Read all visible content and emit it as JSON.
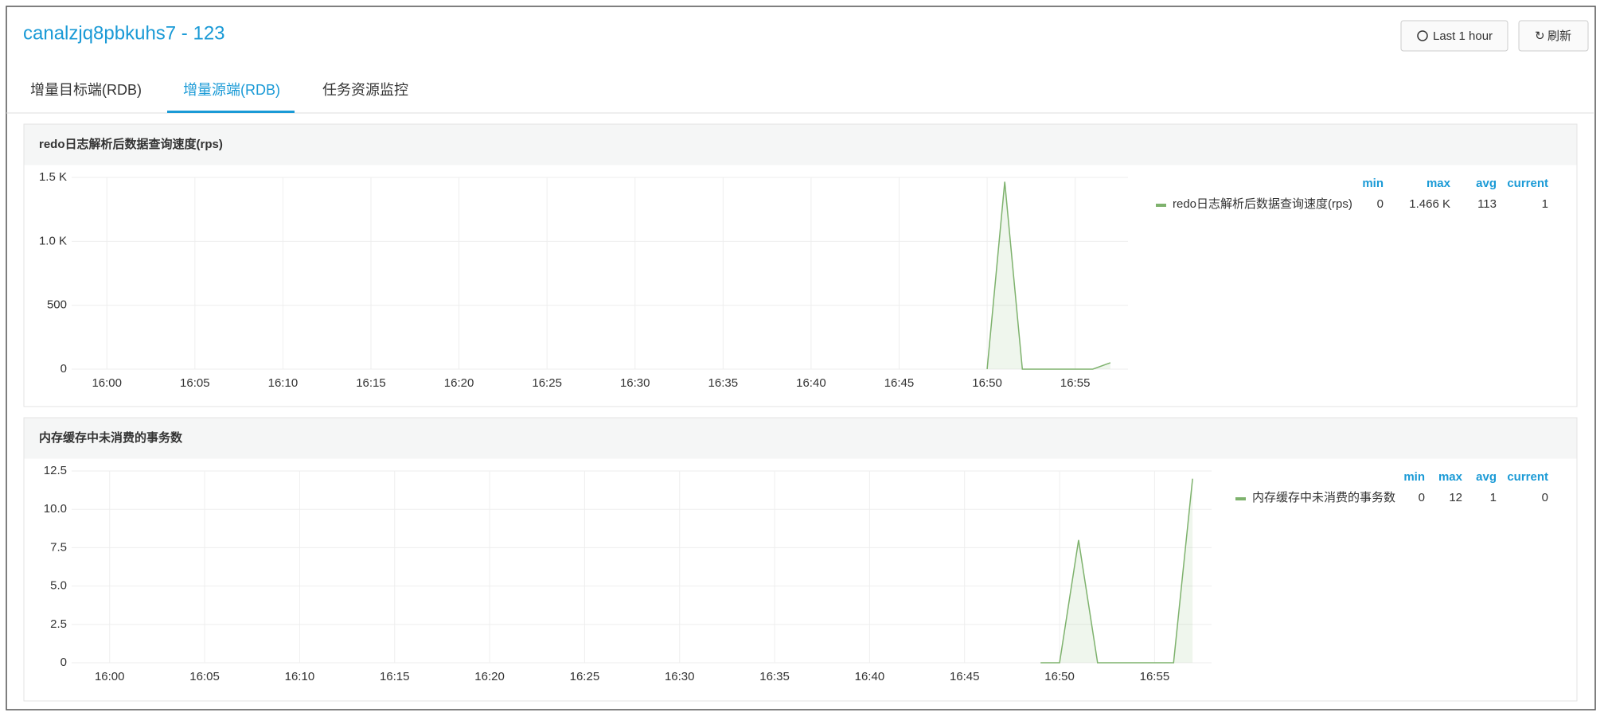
{
  "header": {
    "title": "canalzjq8pbkuhs7 - 123",
    "buttons": [
      "Last 1 hour",
      "刷新"
    ]
  },
  "tabs": {
    "items": [
      "增量目标端(RDB)",
      "增量源端(RDB)",
      "任务资源监控"
    ],
    "active": 1
  },
  "chart_data": [
    {
      "type": "line",
      "title": "redo日志解析后数据查询速度(rps)",
      "x": [
        "16:50",
        "16:51",
        "16:52",
        "16:53",
        "16:54",
        "16:55",
        "16:56",
        "16:57"
      ],
      "series": [
        {
          "name": "redo日志解析后数据查询速度(rps)",
          "color": "#7eb26d",
          "values": [
            0,
            1466,
            0,
            0,
            0,
            0,
            0,
            50
          ],
          "stats": [
            "0",
            "1.466 K",
            "113",
            "1"
          ]
        }
      ],
      "stat_columns": [
        "min",
        "max",
        "avg",
        "current"
      ],
      "xlim": [
        "15:58",
        "16:58"
      ],
      "xticks": [
        "16:00",
        "16:05",
        "16:10",
        "16:15",
        "16:20",
        "16:25",
        "16:30",
        "16:35",
        "16:40",
        "16:45",
        "16:50",
        "16:55"
      ],
      "ylim": [
        0,
        1500
      ],
      "yticks": [
        0,
        500,
        {
          "value": 1000,
          "label": "1.0 K"
        },
        {
          "value": 1500,
          "label": "1.5 K"
        }
      ],
      "grid": true
    },
    {
      "type": "line",
      "title": "内存缓存中未消费的事务数",
      "x": [
        "16:49",
        "16:50",
        "16:51",
        "16:52",
        "16:53",
        "16:54",
        "16:55",
        "16:56",
        "16:57"
      ],
      "series": [
        {
          "name": "内存缓存中未消费的事务数",
          "color": "#7eb26d",
          "values": [
            0,
            0,
            8,
            0,
            0,
            0,
            0,
            0,
            12
          ],
          "stats": [
            "0",
            "12",
            "1",
            "0"
          ]
        }
      ],
      "stat_columns": [
        "min",
        "max",
        "avg",
        "current"
      ],
      "xlim": [
        "15:58",
        "16:58"
      ],
      "xticks": [
        "16:00",
        "16:05",
        "16:10",
        "16:15",
        "16:20",
        "16:25",
        "16:30",
        "16:35",
        "16:40",
        "16:45",
        "16:50",
        "16:55"
      ],
      "ylim": [
        0,
        12.5
      ],
      "yticks": [
        0,
        2.5,
        {
          "value": 5,
          "label": "5.0"
        },
        7.5,
        {
          "value": 10,
          "label": "10.0"
        },
        12.5
      ],
      "grid": true
    }
  ]
}
